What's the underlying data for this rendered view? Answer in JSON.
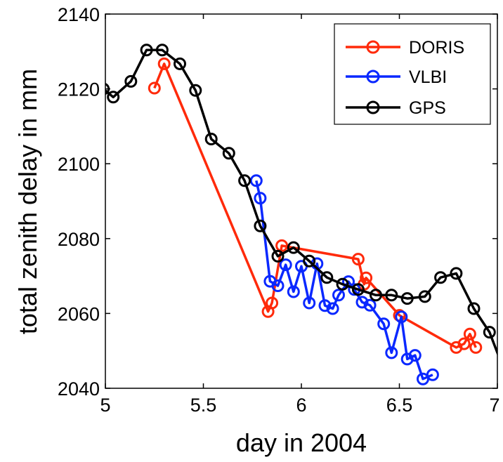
{
  "chart_data": {
    "type": "line",
    "title": "",
    "xlabel": "day in 2004",
    "ylabel": "total zenith delay in mm",
    "xlim": [
      5,
      7
    ],
    "ylim": [
      2040,
      2140
    ],
    "xticks": [
      5,
      5.5,
      6,
      6.5,
      7
    ],
    "yticks": [
      2040,
      2060,
      2080,
      2100,
      2120,
      2140
    ],
    "xtick_labels": [
      "5",
      "5.5",
      "6",
      "6.5",
      "7"
    ],
    "ytick_labels": [
      "2040",
      "2060",
      "2080",
      "2100",
      "2120",
      "2140"
    ],
    "grid": false,
    "legend_position": "top-right",
    "series": [
      {
        "name": "DORIS",
        "color": "#ff2a0a",
        "marker": "open-circle",
        "points": [
          [
            5.25,
            2120.2
          ],
          [
            5.3,
            2126.7
          ],
          [
            5.83,
            2060.5
          ],
          [
            5.85,
            2062.8
          ],
          [
            5.9,
            2078.1
          ],
          [
            6.29,
            2074.5
          ],
          [
            6.32,
            2067.8
          ],
          [
            6.33,
            2069.5
          ],
          [
            6.5,
            2059.5
          ],
          [
            6.79,
            2050.9
          ],
          [
            6.83,
            2051.9
          ],
          [
            6.86,
            2054.5
          ],
          [
            6.89,
            2050.9
          ]
        ]
      },
      {
        "name": "VLBI",
        "color": "#0a28ff",
        "marker": "open-circle",
        "points": [
          [
            5.77,
            2095.5
          ],
          [
            5.79,
            2090.8
          ],
          [
            5.84,
            2068.6
          ],
          [
            5.88,
            2067.4
          ],
          [
            5.92,
            2073.0
          ],
          [
            5.96,
            2065.8
          ],
          [
            6.0,
            2072.6
          ],
          [
            6.04,
            2062.8
          ],
          [
            6.08,
            2073.3
          ],
          [
            6.12,
            2062.1
          ],
          [
            6.16,
            2061.3
          ],
          [
            6.19,
            2064.9
          ],
          [
            6.24,
            2068.5
          ],
          [
            6.27,
            2066.4
          ],
          [
            6.31,
            2063.0
          ],
          [
            6.35,
            2062.2
          ],
          [
            6.42,
            2057.2
          ],
          [
            6.46,
            2049.5
          ],
          [
            6.51,
            2059.1
          ],
          [
            6.54,
            2047.8
          ],
          [
            6.58,
            2048.8
          ],
          [
            6.62,
            2042.5
          ],
          [
            6.67,
            2043.6
          ]
        ]
      },
      {
        "name": "GPS",
        "color": "#000000",
        "marker": "open-circle",
        "points": [
          [
            4.99,
            2120.0
          ],
          [
            5.04,
            2117.8
          ],
          [
            5.13,
            2122.0
          ],
          [
            5.21,
            2130.4
          ],
          [
            5.29,
            2130.4
          ],
          [
            5.38,
            2126.7
          ],
          [
            5.46,
            2119.6
          ],
          [
            5.54,
            2106.6
          ],
          [
            5.63,
            2102.8
          ],
          [
            5.71,
            2095.5
          ],
          [
            5.79,
            2083.4
          ],
          [
            5.88,
            2075.3
          ],
          [
            5.96,
            2077.6
          ],
          [
            6.04,
            2074.0
          ],
          [
            6.13,
            2069.6
          ],
          [
            6.21,
            2067.8
          ],
          [
            6.29,
            2066.4
          ],
          [
            6.38,
            2064.9
          ],
          [
            6.46,
            2064.9
          ],
          [
            6.54,
            2064.0
          ],
          [
            6.63,
            2064.5
          ],
          [
            6.71,
            2069.6
          ],
          [
            6.79,
            2070.7
          ],
          [
            6.88,
            2061.3
          ],
          [
            6.96,
            2055.0
          ],
          [
            7.04,
            2044.0
          ]
        ]
      }
    ]
  }
}
